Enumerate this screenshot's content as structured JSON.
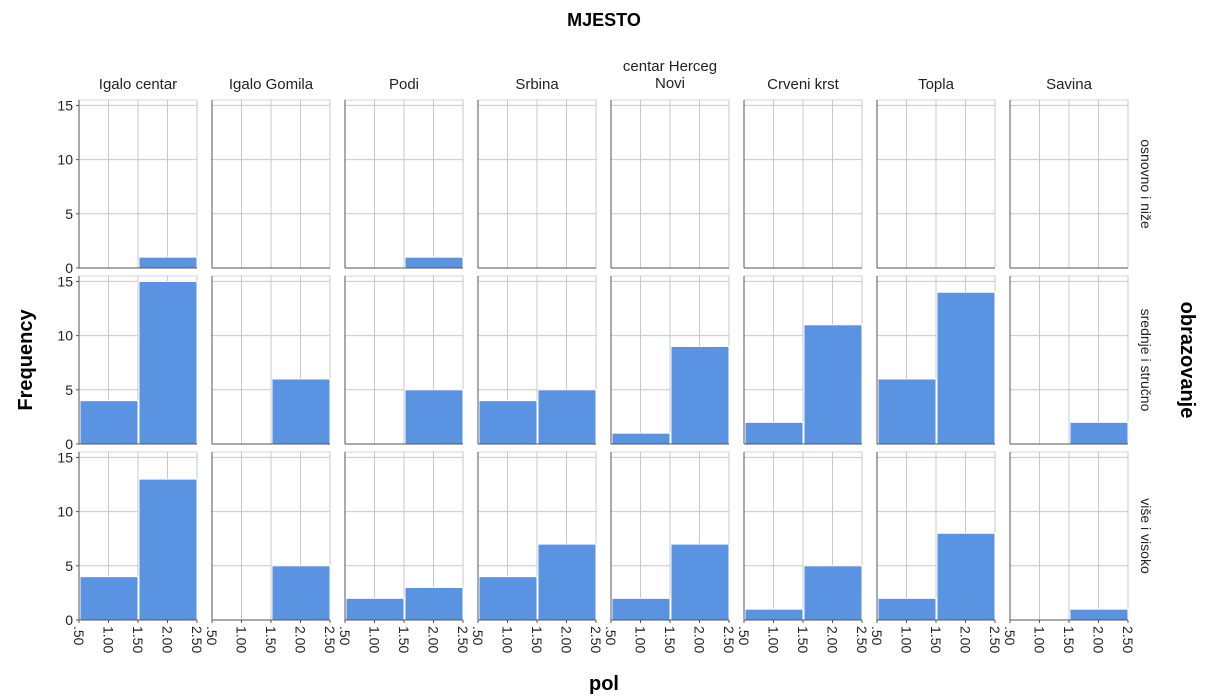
{
  "chart_data": {
    "type": "bar",
    "subtype": "histogram-panel-grid",
    "title": "MJESTO",
    "xlabel": "pol",
    "ylabel": "Frequency",
    "row_variable": "obrazovanje",
    "columns": [
      "Igalo centar",
      "Igalo Gomila",
      "Podi",
      "Srbina",
      "centar Herceg Novi",
      "Crveni krst",
      "Topla",
      "Savina"
    ],
    "rows": [
      "osnovno i niže",
      "srednje i stručno",
      "više i visoko"
    ],
    "x_ticks": [
      ".50",
      "1.00",
      "1.50",
      "2.00",
      "2.50"
    ],
    "xlim": [
      0.5,
      2.5
    ],
    "bins": [
      [
        0.5,
        1.5
      ],
      [
        1.5,
        2.5
      ]
    ],
    "y_ticks": [
      "0",
      "5",
      "10",
      "15"
    ],
    "ylim": [
      0,
      15.5
    ],
    "grid": true,
    "bar_color": "#5b93e3",
    "counts": [
      [
        [
          0,
          1
        ],
        [
          0,
          0
        ],
        [
          0,
          1
        ],
        [
          0,
          0
        ],
        [
          0,
          0
        ],
        [
          0,
          0
        ],
        [
          0,
          0
        ],
        [
          0,
          0
        ]
      ],
      [
        [
          4,
          15
        ],
        [
          0,
          6
        ],
        [
          0,
          5
        ],
        [
          4,
          5
        ],
        [
          1,
          9
        ],
        [
          2,
          11
        ],
        [
          6,
          14
        ],
        [
          0,
          2
        ]
      ],
      [
        [
          4,
          13
        ],
        [
          0,
          5
        ],
        [
          2,
          3
        ],
        [
          4,
          7
        ],
        [
          2,
          7
        ],
        [
          1,
          5
        ],
        [
          2,
          8
        ],
        [
          0,
          1
        ]
      ]
    ]
  }
}
